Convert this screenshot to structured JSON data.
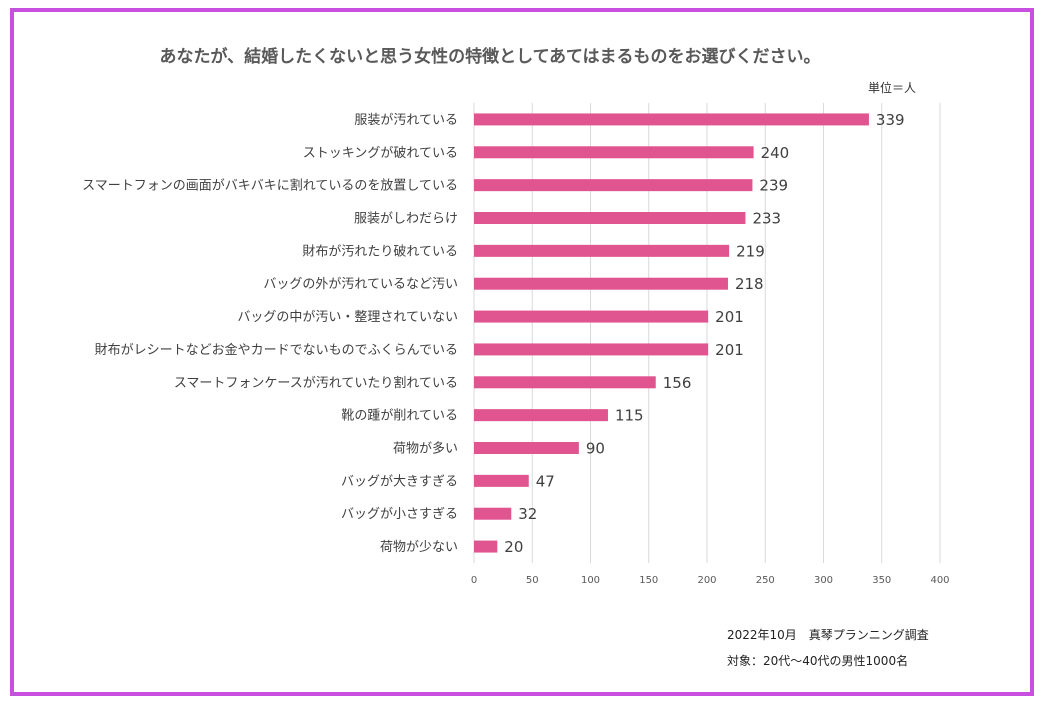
{
  "chart_data": {
    "type": "bar",
    "orientation": "horizontal",
    "title": "あなたが、結婚したくないと思う女性の特徴としてあてはまるものをお選びください。",
    "unit_label": "単位＝人",
    "categories": [
      "服装が汚れている",
      "ストッキングが破れている",
      "スマートフォンの画面がバキバキに割れているのを放置している",
      "服装がしわだらけ",
      "財布が汚れたり破れている",
      "バッグの外が汚れているなど汚い",
      "バッグの中が汚い・整理されていない",
      "財布がレシートなどお金やカードでないものでふくらんでいる",
      "スマートフォンケースが汚れていたり割れている",
      "靴の踵が削れている",
      "荷物が多い",
      "バッグが大きすぎる",
      "バッグが小さすぎる",
      "荷物が少ない"
    ],
    "values": [
      339,
      240,
      239,
      233,
      219,
      218,
      201,
      201,
      156,
      115,
      90,
      47,
      32,
      20
    ],
    "xlim": [
      0,
      400
    ],
    "xticks": [
      0,
      50,
      100,
      150,
      200,
      250,
      300,
      350,
      400
    ],
    "grid": true,
    "bar_color": "#e0558f",
    "xlabel": "",
    "ylabel": ""
  },
  "footer": {
    "source": "2022年10月　真琴プランニング調査",
    "target": "対象：20代～40代の男性1000名"
  },
  "colors": {
    "frame_border": "#c94fe0",
    "grid": "#d9d9d9",
    "text": "#404040"
  }
}
